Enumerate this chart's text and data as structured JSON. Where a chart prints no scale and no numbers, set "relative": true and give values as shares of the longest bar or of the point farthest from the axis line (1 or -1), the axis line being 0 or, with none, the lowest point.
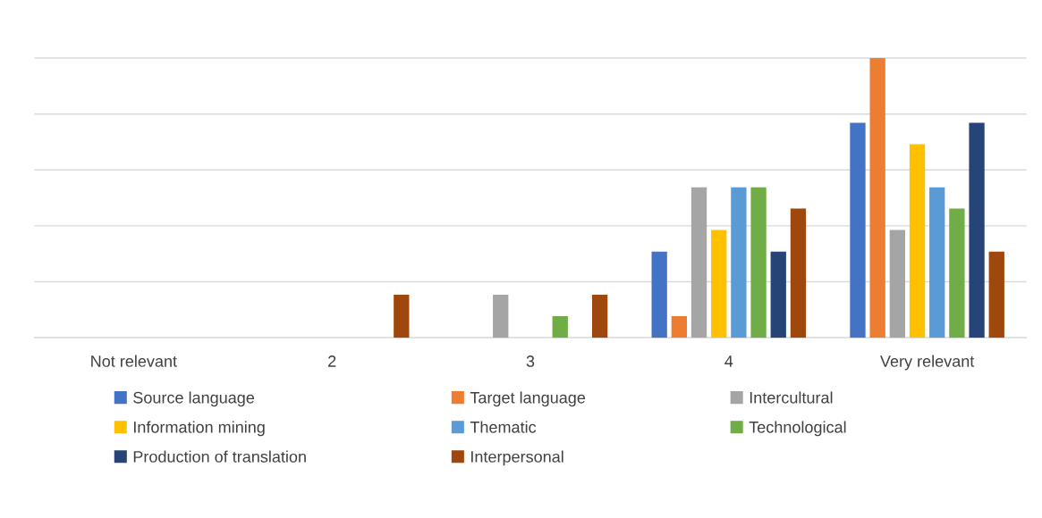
{
  "chart_data": {
    "type": "bar",
    "relative": true,
    "grid": "y",
    "legend": "bottom",
    "categories": [
      "Not relevant",
      "2",
      "3",
      "4",
      "Very relevant"
    ],
    "series": [
      {
        "name": "Source language",
        "color": "#4472c4",
        "values": [
          0,
          0,
          0,
          0.308,
          0.769
        ]
      },
      {
        "name": "Target language",
        "color": "#ed7d31",
        "values": [
          0,
          0,
          0,
          0.077,
          1
        ]
      },
      {
        "name": "Intercultural",
        "color": "#a5a5a5",
        "values": [
          0,
          0,
          0.154,
          0.538,
          0.385
        ]
      },
      {
        "name": "Information mining",
        "color": "#ffc000",
        "values": [
          0,
          0,
          0,
          0.385,
          0.692
        ]
      },
      {
        "name": "Thematic",
        "color": "#5b9bd5",
        "values": [
          0,
          0,
          0,
          0.538,
          0.538
        ]
      },
      {
        "name": "Technological",
        "color": "#70ad47",
        "values": [
          0,
          0,
          0.077,
          0.538,
          0.462
        ]
      },
      {
        "name": "Production of translation",
        "color": "#264478",
        "values": [
          0,
          0,
          0,
          0.308,
          0.769
        ]
      },
      {
        "name": "Interpersonal",
        "color": "#9e480e",
        "values": [
          0,
          0.154,
          0.154,
          0.462,
          0.308
        ]
      }
    ]
  }
}
